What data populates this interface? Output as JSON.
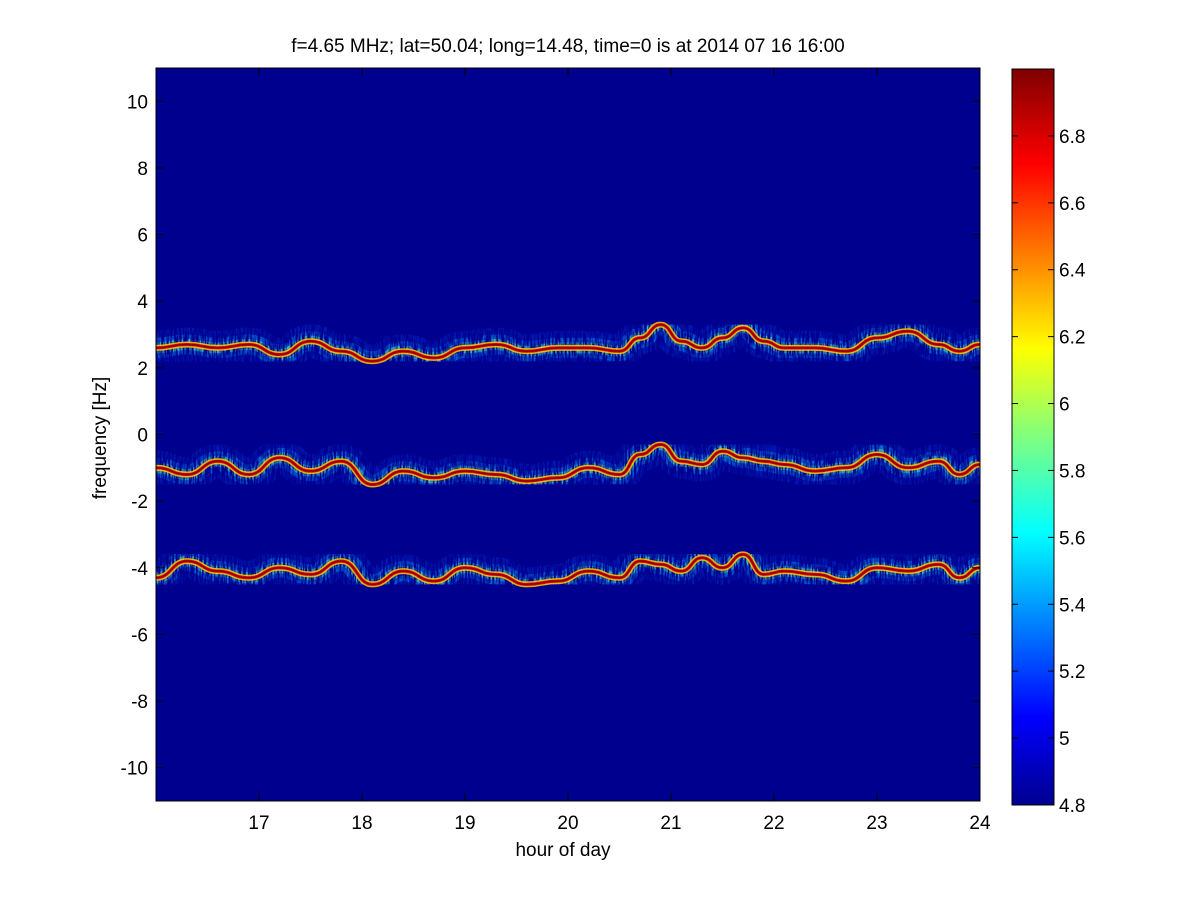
{
  "chart_data": {
    "type": "heatmap",
    "title": "f=4.65 MHz;  lat=50.04; long=14.48, time=0 is at 2014 07 16 16:00",
    "xlabel": "hour of day",
    "ylabel": "frequency [Hz]",
    "xlim": [
      16,
      24
    ],
    "ylim": [
      -11,
      11
    ],
    "xticks": [
      17,
      18,
      19,
      20,
      21,
      22,
      23,
      24
    ],
    "yticks": [
      -10,
      -8,
      -6,
      -4,
      -2,
      0,
      2,
      4,
      6,
      8,
      10
    ],
    "colormap": "jet",
    "background_color": "#00008f",
    "colorbar": {
      "range": [
        4.8,
        7.0
      ],
      "ticks": [
        4.8,
        5,
        5.2,
        5.4,
        5.6,
        5.8,
        6,
        6.2,
        6.4,
        6.6,
        6.8
      ],
      "tick_labels": [
        "4.8",
        "5",
        "5.2",
        "5.4",
        "5.6",
        "5.8",
        "6",
        "6.2",
        "6.4",
        "6.6",
        "6.8"
      ]
    },
    "grid": false,
    "traces": [
      {
        "band": "upper",
        "x": [
          16.0,
          16.3,
          16.6,
          16.9,
          17.2,
          17.5,
          17.8,
          18.1,
          18.4,
          18.7,
          19.0,
          19.3,
          19.6,
          19.9,
          20.2,
          20.5,
          20.7,
          20.9,
          21.1,
          21.3,
          21.5,
          21.7,
          21.9,
          22.1,
          22.4,
          22.7,
          23.0,
          23.3,
          23.6,
          23.8,
          24.0
        ],
        "y": [
          2.6,
          2.7,
          2.6,
          2.7,
          2.4,
          2.8,
          2.5,
          2.2,
          2.5,
          2.3,
          2.6,
          2.7,
          2.5,
          2.6,
          2.6,
          2.5,
          2.9,
          3.3,
          2.8,
          2.6,
          2.9,
          3.2,
          2.8,
          2.6,
          2.6,
          2.5,
          2.9,
          3.1,
          2.7,
          2.5,
          2.7
        ]
      },
      {
        "band": "middle",
        "x": [
          16.0,
          16.3,
          16.6,
          16.9,
          17.2,
          17.5,
          17.8,
          18.1,
          18.4,
          18.7,
          19.0,
          19.3,
          19.6,
          19.9,
          20.2,
          20.5,
          20.7,
          20.9,
          21.1,
          21.3,
          21.5,
          21.7,
          21.9,
          22.1,
          22.4,
          22.7,
          23.0,
          23.3,
          23.6,
          23.8,
          24.0
        ],
        "y": [
          -1.0,
          -1.2,
          -0.8,
          -1.2,
          -0.7,
          -1.1,
          -0.8,
          -1.5,
          -1.1,
          -1.3,
          -1.1,
          -1.2,
          -1.4,
          -1.3,
          -1.0,
          -1.2,
          -0.6,
          -0.3,
          -0.8,
          -0.9,
          -0.5,
          -0.7,
          -0.8,
          -0.9,
          -1.1,
          -1.0,
          -0.6,
          -1.0,
          -0.8,
          -1.2,
          -0.9
        ]
      },
      {
        "band": "lower",
        "x": [
          16.0,
          16.3,
          16.6,
          16.9,
          17.2,
          17.5,
          17.8,
          18.1,
          18.4,
          18.7,
          19.0,
          19.3,
          19.6,
          19.9,
          20.2,
          20.5,
          20.7,
          20.9,
          21.1,
          21.3,
          21.5,
          21.7,
          21.9,
          22.1,
          22.4,
          22.7,
          23.0,
          23.3,
          23.6,
          23.8,
          24.0
        ],
        "y": [
          -4.3,
          -3.8,
          -4.1,
          -4.3,
          -4.0,
          -4.2,
          -3.8,
          -4.5,
          -4.1,
          -4.4,
          -4.0,
          -4.2,
          -4.5,
          -4.4,
          -4.1,
          -4.3,
          -3.8,
          -3.9,
          -4.1,
          -3.7,
          -4.0,
          -3.6,
          -4.2,
          -4.1,
          -4.2,
          -4.4,
          -4.0,
          -4.1,
          -3.9,
          -4.3,
          -4.0
        ]
      }
    ]
  }
}
